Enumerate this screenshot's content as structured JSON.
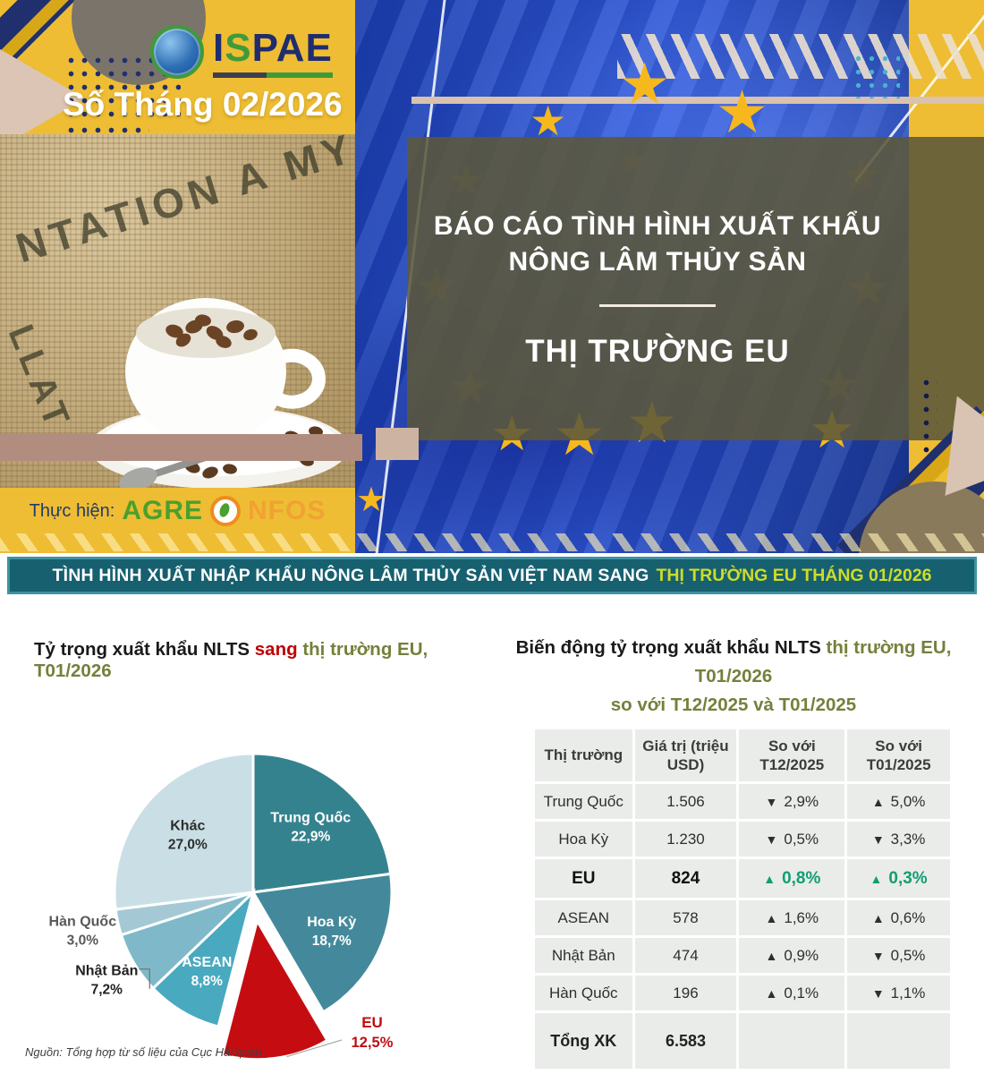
{
  "masthead": {
    "logo": {
      "part_i": "I",
      "part_s": "S",
      "part_pae": "PAE"
    },
    "issue": "Số Tháng 02/2026",
    "photo_stamp_1": "NTATION A MY",
    "photo_stamp_2": "LLAT",
    "credit_label": "Thực hiện:",
    "brand_part_1": "AGRE",
    "brand_part_2": "NFOS",
    "title_line1": "BÁO CÁO TÌNH HÌNH XUẤT KHẨU",
    "title_line2": "NÔNG LÂM THỦY SẢN",
    "title_market": "THỊ TRƯỜNG EU"
  },
  "banner": {
    "text_white": "TÌNH HÌNH XUẤT NHẬP KHẨU NÔNG LÂM THỦY SẢN VIỆT NAM SANG",
    "text_highlight": "THỊ TRƯỜNG EU THÁNG 01/2026"
  },
  "pie_section": {
    "title_black": "Tỷ trọng xuất khẩu NLTS ",
    "title_red": "sang ",
    "title_green": "thị trường EU, T01/2026"
  },
  "table_section": {
    "title_black": "Biến động tỷ trọng xuất khẩu NLTS ",
    "title_green_1": "thị trường EU, T01/2026",
    "title_green_2": "so với T12/2025 và T01/2025"
  },
  "source_note": "Nguồn: Tổng hợp từ số liệu của Cục Hải quan",
  "chart_data": [
    {
      "type": "pie",
      "title": "Tỷ trọng xuất khẩu NLTS sang thị trường EU, T01/2026",
      "legend_position": "none",
      "slices": [
        {
          "name": "Trung Quốc",
          "value": 22.9,
          "pct_label": "22,9%",
          "color": "#35828f",
          "label": "inside",
          "label_color": "#ffffff",
          "label_r": 0.63
        },
        {
          "name": "Hoa Kỳ",
          "value": 18.7,
          "pct_label": "18,7%",
          "color": "#44899b",
          "label": "inside",
          "label_color": "#ffffff",
          "label_r": 0.63
        },
        {
          "name": "EU",
          "value": 12.5,
          "pct_label": "12,5%",
          "color": "#c50d11",
          "label": "custom-eu",
          "label_color": "#c00d12",
          "explode": 32
        },
        {
          "name": "ASEAN",
          "value": 8.8,
          "pct_label": "8,8%",
          "color": "#49a9bf",
          "label": "inside",
          "label_color": "#ffffff",
          "label_r": 0.66
        },
        {
          "name": "Nhật Bản",
          "value": 7.2,
          "pct_label": "7,2%",
          "color": "#7fb9c9",
          "label": "outside",
          "label_color": "#222222",
          "label_r": 1.23,
          "leader": "bracket"
        },
        {
          "name": "Hàn Quốc",
          "value": 3.0,
          "pct_label": "3,0%",
          "color": "#a4c9d5",
          "label": "outside",
          "label_color": "#595959",
          "label_r": 1.26
        },
        {
          "name": "Khác",
          "value": 27.0,
          "pct_label": "27,0%",
          "color": "#c9dfe5",
          "label": "inside",
          "label_color": "#2d2d2d",
          "label_r": 0.63
        }
      ]
    },
    {
      "type": "table",
      "title": "Biến động tỷ trọng xuất khẩu NLTS thị trường EU, T01/2026 so với T12/2025 và T01/2025",
      "headers": [
        "Thị trường",
        "Giá trị (triệu USD)",
        "So với T12/2025",
        "So với T01/2025"
      ],
      "up_glyph": "▲",
      "down_glyph": "▼",
      "rows": [
        {
          "market": "Trung Quốc",
          "value": "1.506",
          "vs_t12_dir": "down",
          "vs_t12": "2,9%",
          "vs_t01_dir": "up",
          "vs_t01": "5,0%",
          "style": "normal"
        },
        {
          "market": "Hoa Kỳ",
          "value": "1.230",
          "vs_t12_dir": "down",
          "vs_t12": "0,5%",
          "vs_t01_dir": "down",
          "vs_t01": "3,3%",
          "style": "normal"
        },
        {
          "market": "EU",
          "value": "824",
          "vs_t12_dir": "up",
          "vs_t12": "0,8%",
          "vs_t01_dir": "up",
          "vs_t01": "0,3%",
          "style": "emphasis"
        },
        {
          "market": "ASEAN",
          "value": "578",
          "vs_t12_dir": "up",
          "vs_t12": "1,6%",
          "vs_t01_dir": "up",
          "vs_t01": "0,6%",
          "style": "normal"
        },
        {
          "market": "Nhật Bản",
          "value": "474",
          "vs_t12_dir": "up",
          "vs_t12": "0,9%",
          "vs_t01_dir": "down",
          "vs_t01": "0,5%",
          "style": "normal"
        },
        {
          "market": "Hàn Quốc",
          "value": "196",
          "vs_t12_dir": "up",
          "vs_t12": "0,1%",
          "vs_t01_dir": "down",
          "vs_t01": "1,1%",
          "style": "normal"
        },
        {
          "market": "Tổng XK",
          "value": "6.583",
          "vs_t12_dir": null,
          "vs_t12": "",
          "vs_t01_dir": null,
          "vs_t01": "",
          "style": "total"
        }
      ]
    }
  ],
  "colors": {
    "gold": "#eebd33",
    "navy": "#1f2d6e",
    "flag_blue": "#1b3eae",
    "overlay_olive": "#5c583a",
    "banner_teal": "#16606f",
    "banner_highlight": "#cddc2a",
    "table_cell": "#e9ece8",
    "up_green": "#1ba077",
    "down_red": "#e31b23",
    "eu_red": "#c50d11",
    "title_green": "#75803b"
  }
}
